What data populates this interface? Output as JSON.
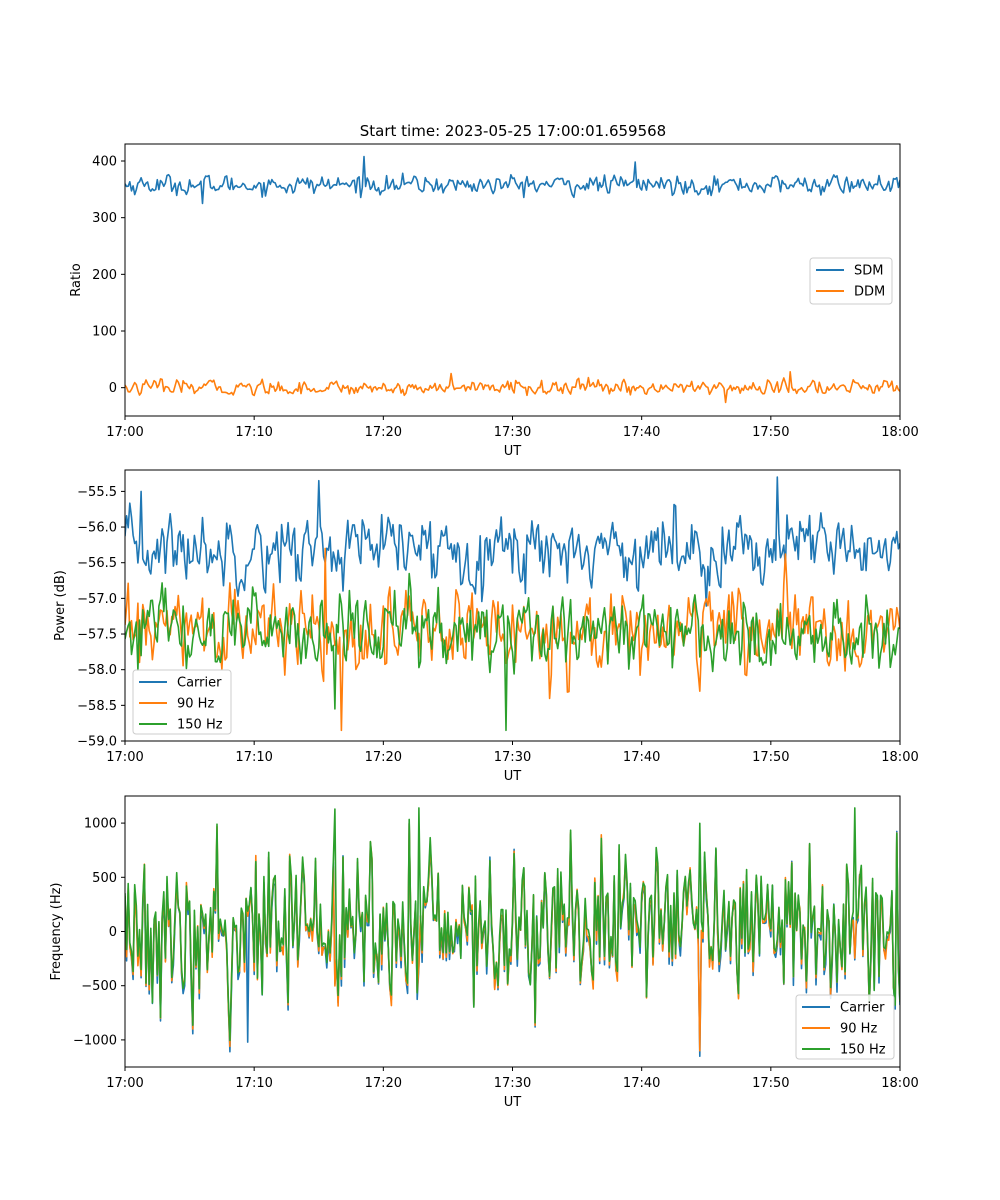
{
  "figure": {
    "title": "Start time: 2023-05-25 17:00:01.659568"
  },
  "chart_data": [
    {
      "type": "line",
      "xlabel": "UT",
      "ylabel": "Ratio",
      "xlim": [
        "17:00",
        "18:00"
      ],
      "xticks": [
        "17:00",
        "17:10",
        "17:20",
        "17:30",
        "17:40",
        "17:50",
        "18:00"
      ],
      "ylim": [
        -50,
        430
      ],
      "yticks": [
        0,
        100,
        200,
        300,
        400
      ],
      "grid": false,
      "legend": "center-right",
      "series": [
        {
          "name": "SDM",
          "color": "#1f77b4",
          "mean": 358,
          "stdev": 12,
          "spikes": [
            [
              18.5,
              408
            ],
            [
              39.5,
              398
            ],
            [
              6.0,
              325
            ]
          ]
        },
        {
          "name": "DDM",
          "color": "#ff7f0e",
          "mean": 0,
          "stdev": 9,
          "spikes": [
            [
              25.3,
              25
            ],
            [
              51.5,
              28
            ],
            [
              46.5,
              -26
            ]
          ]
        }
      ]
    },
    {
      "type": "line",
      "xlabel": "UT",
      "ylabel": "Power (dB)",
      "xlim": [
        "17:00",
        "18:00"
      ],
      "xticks": [
        "17:00",
        "17:10",
        "17:20",
        "17:30",
        "17:40",
        "17:50",
        "18:00"
      ],
      "ylim": [
        -59.0,
        -55.2
      ],
      "yticks": [
        -59.0,
        -58.5,
        -58.0,
        -57.5,
        -57.0,
        -56.5,
        -56.0,
        -55.5
      ],
      "grid": false,
      "legend": "lower-left",
      "series": [
        {
          "name": "Carrier",
          "color": "#1f77b4",
          "mean": -56.3,
          "stdev": 0.35,
          "spikes": [
            [
              15.0,
              -55.35
            ],
            [
              50.5,
              -55.3
            ],
            [
              1.2,
              -55.5
            ]
          ]
        },
        {
          "name": "90 Hz",
          "color": "#ff7f0e",
          "mean": -57.45,
          "stdev": 0.4,
          "spikes": [
            [
              16.8,
              -58.85
            ],
            [
              15.5,
              -56.3
            ]
          ]
        },
        {
          "name": "150 Hz",
          "color": "#2ca02c",
          "mean": -57.45,
          "stdev": 0.38,
          "spikes": [
            [
              29.5,
              -58.85
            ],
            [
              16.3,
              -58.55
            ]
          ]
        }
      ]
    },
    {
      "type": "line",
      "xlabel": "UT",
      "ylabel": "Frequency (Hz)",
      "xlim": [
        "17:00",
        "18:00"
      ],
      "xticks": [
        "17:00",
        "17:10",
        "17:20",
        "17:30",
        "17:40",
        "17:50",
        "18:00"
      ],
      "ylim": [
        -1250,
        1250
      ],
      "yticks": [
        -1000,
        -500,
        0,
        500,
        1000
      ],
      "grid": false,
      "legend": "lower-right",
      "series": [
        {
          "name": "Carrier",
          "color": "#1f77b4",
          "mean": 20,
          "stdev": 360,
          "spikes": [
            [
              44.5,
              -1150
            ],
            [
              9.5,
              -1020
            ]
          ]
        },
        {
          "name": "90 Hz",
          "color": "#ff7f0e",
          "mean": 40,
          "stdev": 360,
          "spikes": [
            [
              44.5,
              -1100
            ]
          ]
        },
        {
          "name": "150 Hz",
          "color": "#2ca02c",
          "mean": 70,
          "stdev": 360,
          "spikes": [
            [
              16.2,
              1130
            ],
            [
              22.8,
              1140
            ],
            [
              56.5,
              1140
            ]
          ]
        }
      ]
    }
  ]
}
